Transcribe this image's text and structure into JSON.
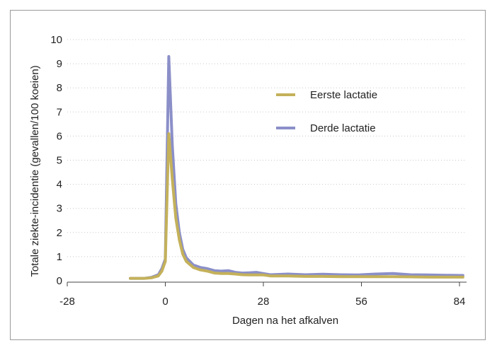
{
  "chart_data": {
    "type": "line",
    "xlabel": "Dagen na het afkalven",
    "ylabel": "Totale ziekte-incidentie (gevallen/100 koeien)",
    "xlim": [
      -28,
      84
    ],
    "ylim": [
      0,
      10
    ],
    "xticks": [
      "-28",
      "0",
      "28",
      "56",
      "84"
    ],
    "yticks": [
      "0",
      "1",
      "2",
      "3",
      "4",
      "5",
      "6",
      "7",
      "8",
      "9",
      "10"
    ],
    "grid": "horizontal dotted",
    "legend_position": "right, upper",
    "series": [
      {
        "name": "Eerste lactatie",
        "color": "#c4b15a",
        "x": [
          -10,
          -8,
          -6,
          -4,
          -2,
          -1,
          0,
          1,
          2,
          3,
          4,
          5,
          6,
          8,
          10,
          12,
          14,
          16,
          18,
          20,
          22,
          24,
          26,
          28,
          30,
          35,
          40,
          45,
          50,
          55,
          60,
          65,
          70,
          75,
          80,
          85
        ],
        "y": [
          0.1,
          0.1,
          0.1,
          0.12,
          0.2,
          0.4,
          0.8,
          6.1,
          4.2,
          2.6,
          1.7,
          1.1,
          0.8,
          0.55,
          0.45,
          0.4,
          0.32,
          0.3,
          0.3,
          0.28,
          0.25,
          0.24,
          0.24,
          0.24,
          0.2,
          0.2,
          0.18,
          0.18,
          0.17,
          0.17,
          0.17,
          0.17,
          0.16,
          0.15,
          0.15,
          0.15
        ]
      },
      {
        "name": "Derde lactatie",
        "color": "#8b8fc8",
        "x": [
          -10,
          -8,
          -6,
          -4,
          -2,
          -1,
          0,
          1,
          2,
          3,
          4,
          5,
          6,
          8,
          10,
          12,
          14,
          16,
          18,
          20,
          22,
          24,
          26,
          28,
          30,
          35,
          40,
          45,
          50,
          55,
          60,
          65,
          70,
          75,
          80,
          85
        ],
        "y": [
          0.1,
          0.1,
          0.1,
          0.14,
          0.25,
          0.5,
          0.9,
          9.3,
          5.6,
          3.2,
          2.0,
          1.3,
          0.95,
          0.65,
          0.55,
          0.5,
          0.42,
          0.4,
          0.42,
          0.35,
          0.32,
          0.33,
          0.35,
          0.3,
          0.25,
          0.28,
          0.25,
          0.27,
          0.25,
          0.24,
          0.28,
          0.3,
          0.25,
          0.24,
          0.23,
          0.22
        ]
      }
    ]
  }
}
